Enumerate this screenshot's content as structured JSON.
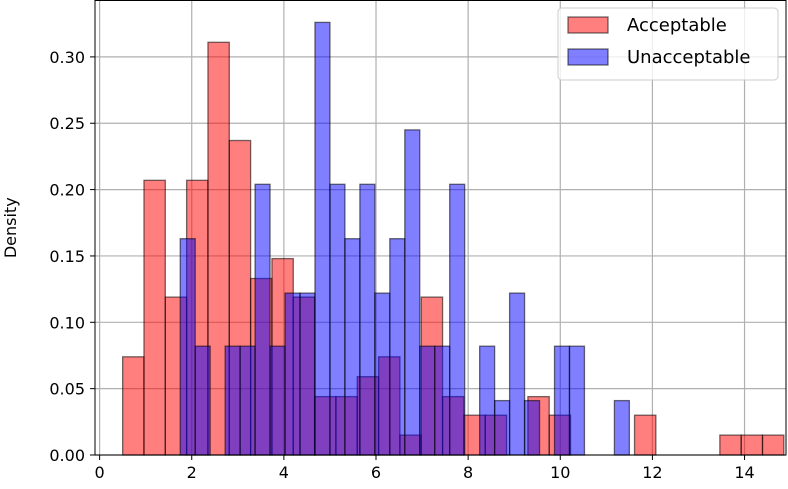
{
  "chart_data": {
    "type": "bar",
    "subtype": "histogram",
    "ylabel": "Density",
    "xlabel": "",
    "xlim": [
      -0.1,
      14.9
    ],
    "ylim": [
      0,
      0.3425
    ],
    "xticks": [
      0,
      2,
      4,
      6,
      8,
      10,
      12,
      14
    ],
    "yticks": [
      0.0,
      0.05,
      0.1,
      0.15,
      0.2,
      0.25,
      0.3
    ],
    "ytick_labels": [
      "0.00",
      "0.05",
      "0.10",
      "0.15",
      "0.20",
      "0.25",
      "0.30"
    ],
    "grid": true,
    "legend_position": "top-right",
    "series": [
      {
        "name": "Acceptable",
        "color": "#ff0000",
        "alpha": 0.5,
        "bin_start": 0.5,
        "bin_width": 0.463,
        "bins": [
          [
            0,
            0.074
          ],
          [
            1,
            0.207
          ],
          [
            2,
            0.119
          ],
          [
            3,
            0.207
          ],
          [
            4,
            0.311
          ],
          [
            5,
            0.237
          ],
          [
            6,
            0.133
          ],
          [
            7,
            0.148
          ],
          [
            8,
            0.119
          ],
          [
            9,
            0.044
          ],
          [
            10,
            0.044
          ],
          [
            11,
            0.059
          ],
          [
            12,
            0.074
          ],
          [
            13,
            0.015
          ],
          [
            14,
            0.119
          ],
          [
            15,
            0.044
          ],
          [
            16,
            0.03
          ],
          [
            17,
            0.03
          ],
          [
            19,
            0.044
          ],
          [
            20,
            0.03
          ],
          [
            24,
            0.03
          ],
          [
            28,
            0.015
          ],
          [
            29,
            0.015
          ],
          [
            30,
            0.015
          ]
        ]
      },
      {
        "name": "Unacceptable",
        "color": "#0000ff",
        "alpha": 0.5,
        "bin_start": 1.75,
        "bin_width": 0.325,
        "bins": [
          [
            0,
            0.163
          ],
          [
            1,
            0.082
          ],
          [
            3,
            0.082
          ],
          [
            4,
            0.082
          ],
          [
            5,
            0.204
          ],
          [
            6,
            0.082
          ],
          [
            7,
            0.122
          ],
          [
            8,
            0.122
          ],
          [
            9,
            0.326
          ],
          [
            10,
            0.204
          ],
          [
            11,
            0.163
          ],
          [
            12,
            0.204
          ],
          [
            13,
            0.122
          ],
          [
            14,
            0.163
          ],
          [
            15,
            0.245
          ],
          [
            16,
            0.082
          ],
          [
            17,
            0.082
          ],
          [
            18,
            0.204
          ],
          [
            20,
            0.082
          ],
          [
            21,
            0.041
          ],
          [
            22,
            0.122
          ],
          [
            23,
            0.041
          ],
          [
            24,
            0.0
          ],
          [
            25,
            0.082
          ],
          [
            26,
            0.082
          ],
          [
            29,
            0.041
          ]
        ]
      }
    ]
  }
}
